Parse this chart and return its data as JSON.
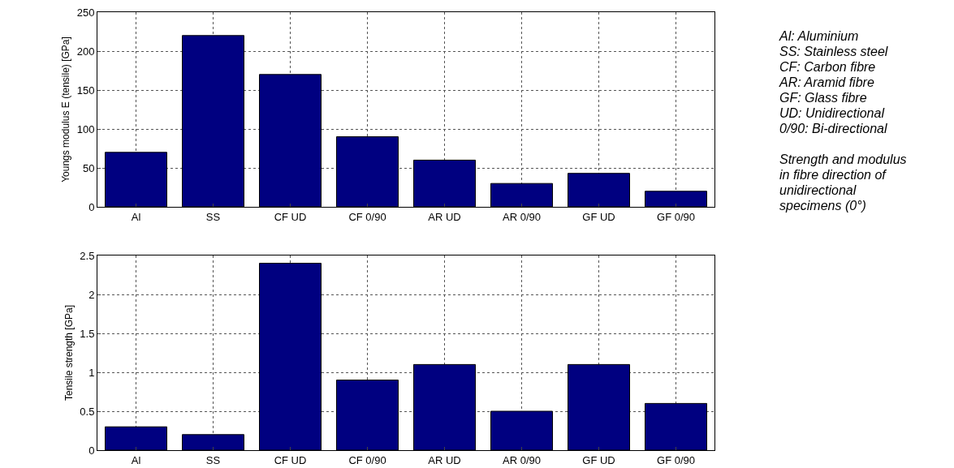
{
  "chart_data": [
    {
      "type": "bar",
      "ylabel": "Youngs modulus E (tensile) [GPa]",
      "categories": [
        "Al",
        "SS",
        "CF UD",
        "CF 0/90",
        "AR UD",
        "AR 0/90",
        "GF UD",
        "GF 0/90"
      ],
      "values": [
        70,
        220,
        170,
        90,
        60,
        30,
        43,
        20
      ],
      "color": "#000080",
      "ylim": [
        0,
        250
      ],
      "yticks": [
        0,
        50,
        100,
        150,
        200,
        250
      ],
      "grid": true
    },
    {
      "type": "bar",
      "ylabel": "Tensile strength [GPa]",
      "categories": [
        "Al",
        "SS",
        "CF UD",
        "CF 0/90",
        "AR UD",
        "AR 0/90",
        "GF UD",
        "GF 0/90"
      ],
      "values": [
        0.3,
        0.2,
        2.4,
        0.9,
        1.1,
        0.5,
        1.1,
        0.6
      ],
      "color": "#000080",
      "ylim": [
        0,
        2.5
      ],
      "yticks": [
        0,
        0.5,
        1,
        1.5,
        2,
        2.5
      ],
      "grid": true
    },
    {
      "type": "other",
      "annotations": [
        "Al: Aluminium",
        "SS: Stainless steel",
        "CF: Carbon fibre",
        "AR: Aramid fibre",
        "GF: Glass fibre",
        "UD: Unidirectional",
        "0/90: Bi-directional",
        "Strength and modulus in fibre direction of unidirectional specimens (0°)"
      ]
    }
  ]
}
